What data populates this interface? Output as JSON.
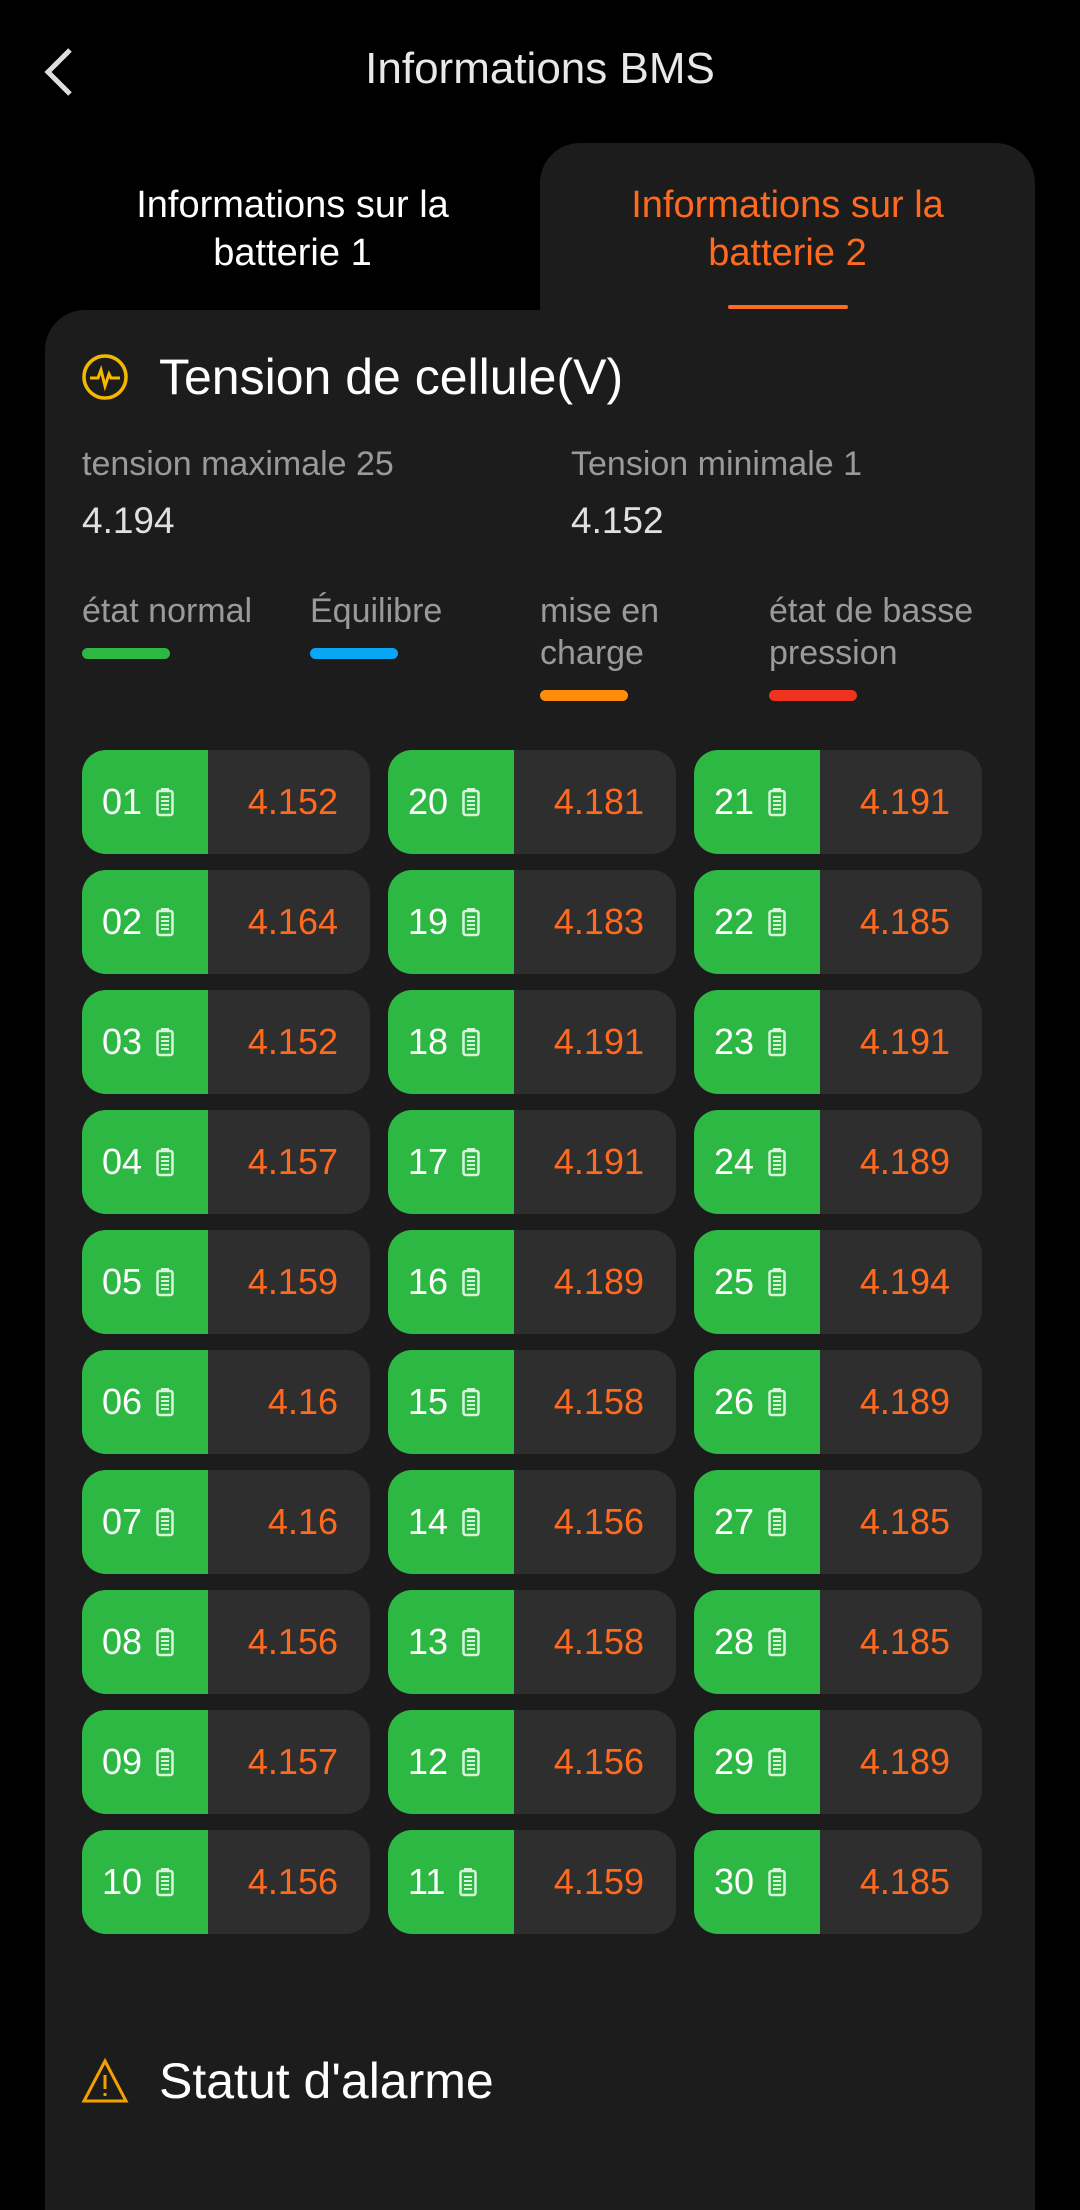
{
  "header": {
    "title": "Informations BMS",
    "back_icon": "chevron-left-icon"
  },
  "tabs": [
    {
      "label": "Informations sur la batterie 1",
      "active": false
    },
    {
      "label": "Informations sur la batterie 2",
      "active": true
    }
  ],
  "accent": "#ff6a1f",
  "cell_voltage": {
    "title": "Tension de cellule(V)",
    "max_label": "tension maximale 25",
    "max_value": "4.194",
    "min_label": "Tension minimale 1",
    "min_value": "4.152",
    "legend": [
      {
        "label": "état normal",
        "color": "#2db843"
      },
      {
        "label": "Équilibre",
        "color": "#08a6f5"
      },
      {
        "label": "mise en charge",
        "color": "#ff8c0a"
      },
      {
        "label": "état de basse pression",
        "color": "#f0331f"
      }
    ],
    "columns": [
      [
        [
          "01",
          "4.152"
        ],
        [
          "02",
          "4.164"
        ],
        [
          "03",
          "4.152"
        ],
        [
          "04",
          "4.157"
        ],
        [
          "05",
          "4.159"
        ],
        [
          "06",
          "4.16"
        ],
        [
          "07",
          "4.16"
        ],
        [
          "08",
          "4.156"
        ],
        [
          "09",
          "4.157"
        ],
        [
          "10",
          "4.156"
        ]
      ],
      [
        [
          "20",
          "4.181"
        ],
        [
          "19",
          "4.183"
        ],
        [
          "18",
          "4.191"
        ],
        [
          "17",
          "4.191"
        ],
        [
          "16",
          "4.189"
        ],
        [
          "15",
          "4.158"
        ],
        [
          "14",
          "4.156"
        ],
        [
          "13",
          "4.158"
        ],
        [
          "12",
          "4.156"
        ],
        [
          "11",
          "4.159"
        ]
      ],
      [
        [
          "21",
          "4.191"
        ],
        [
          "22",
          "4.185"
        ],
        [
          "23",
          "4.191"
        ],
        [
          "24",
          "4.189"
        ],
        [
          "25",
          "4.194"
        ],
        [
          "26",
          "4.189"
        ],
        [
          "27",
          "4.185"
        ],
        [
          "28",
          "4.185"
        ],
        [
          "29",
          "4.189"
        ],
        [
          "30",
          "4.185"
        ]
      ]
    ]
  },
  "alarm": {
    "title": "Statut d'alarme"
  }
}
